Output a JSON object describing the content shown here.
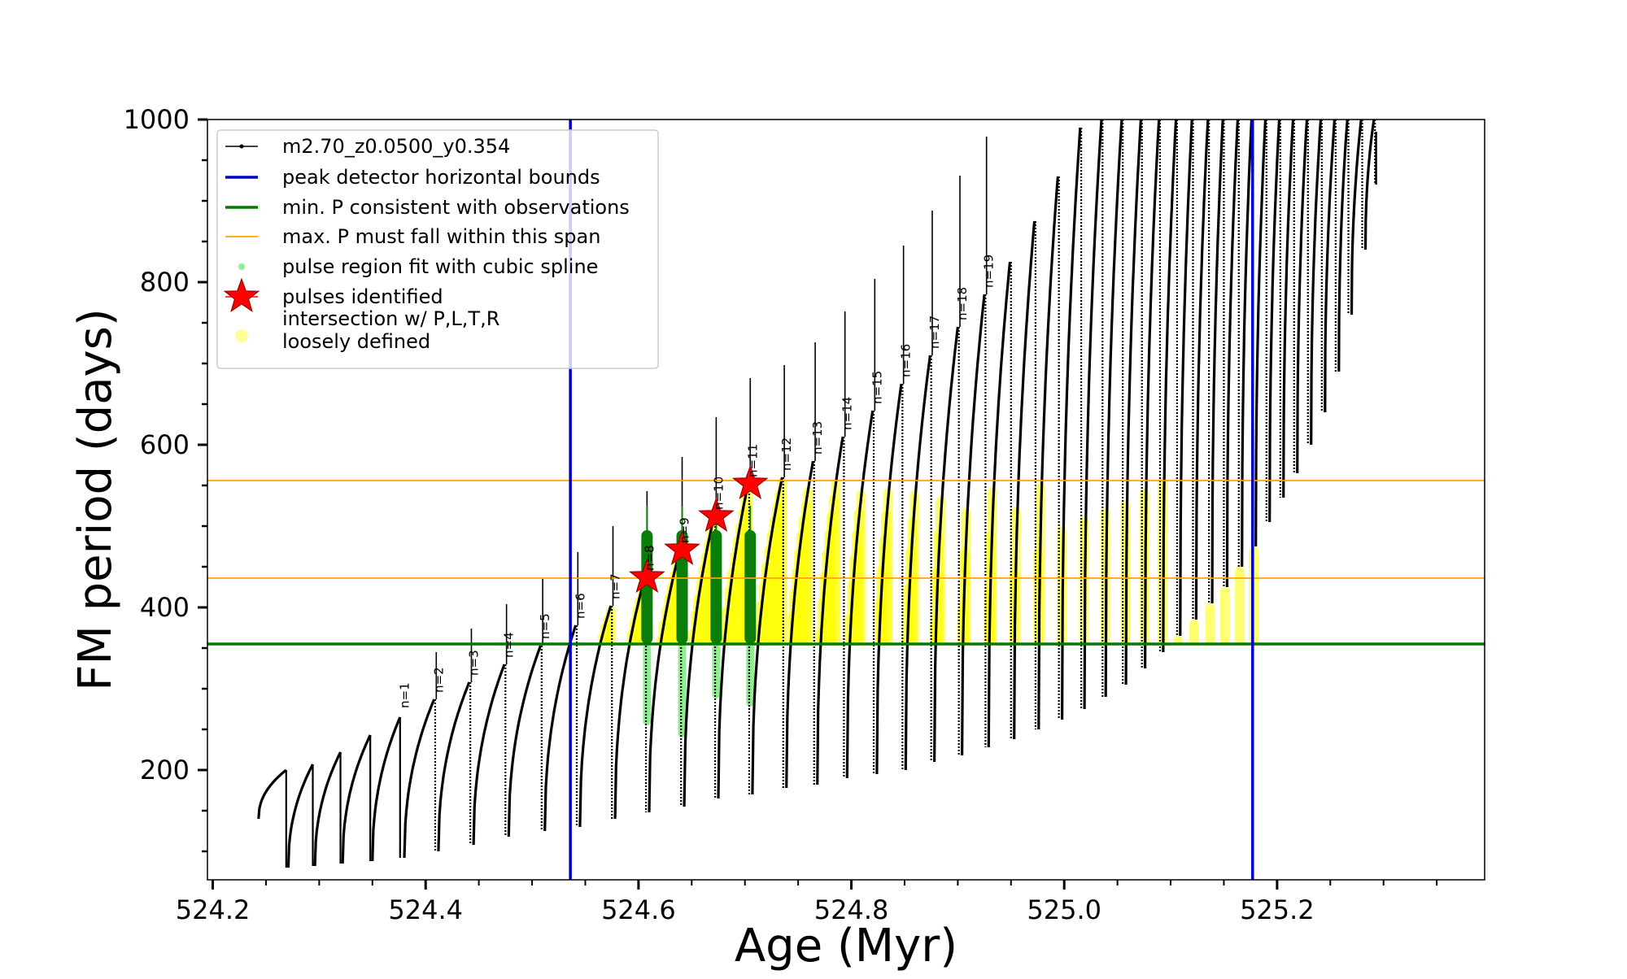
{
  "chart_data": {
    "type": "line",
    "title": "",
    "xlabel": "Age (Myr)",
    "ylabel": "FM period (days)",
    "xlim": [
      524.195,
      525.395
    ],
    "ylim": [
      65,
      1000
    ],
    "x_ticks": [
      524.2,
      524.4,
      524.6,
      524.8,
      525.0,
      525.2
    ],
    "x_tick_labels": [
      "524.2",
      "524.4",
      "524.6",
      "524.8",
      "525.0",
      "525.2"
    ],
    "y_ticks": [
      200,
      400,
      600,
      800,
      1000
    ],
    "y_tick_labels": [
      "200",
      "400",
      "600",
      "800",
      "1000"
    ],
    "grid": false,
    "legend_position": "top-left",
    "legend": [
      {
        "label": "m2.70_z0.0500_y0.354",
        "kind": "line-marker",
        "color": "#000000"
      },
      {
        "label": "peak detector horizontal bounds",
        "kind": "line",
        "color": "#0000cc"
      },
      {
        "label": "min. P consistent with observations",
        "kind": "line",
        "color": "#007a00"
      },
      {
        "label": "max. P must fall within this span",
        "kind": "thin-line",
        "color": "#ffa500"
      },
      {
        "label": "pulse region fit with cubic spline",
        "kind": "dot",
        "color": "#90ee90"
      },
      {
        "label": "pulses identified",
        "kind": "star",
        "color": "#ff0000"
      },
      {
        "label": "intersection w/ P,L,T,R\nloosely defined",
        "kind": "dot",
        "color": "#ffff99"
      }
    ],
    "vertical_lines": {
      "color": "#0000cc",
      "x": [
        524.536,
        525.177
      ]
    },
    "min_period_line": {
      "color": "#007a00",
      "y": 355
    },
    "max_period_span": {
      "color": "#ffa500",
      "y": [
        436,
        556
      ]
    },
    "pulses": [
      {
        "label": "n=1",
        "age": 524.378,
        "p_start": 92,
        "p_peak": 268
      },
      {
        "label": "n=2",
        "age": 524.41,
        "p_start": 100,
        "p_peak": 287
      },
      {
        "label": "n=3",
        "age": 524.443,
        "p_start": 108,
        "p_peak": 308
      },
      {
        "label": "n=4",
        "age": 524.476,
        "p_start": 118,
        "p_peak": 330
      },
      {
        "label": "n=5",
        "age": 524.51,
        "p_start": 125,
        "p_peak": 353
      },
      {
        "label": "n=6",
        "age": 524.543,
        "p_start": 130,
        "p_peak": 378
      },
      {
        "label": "n=7",
        "age": 524.576,
        "p_start": 140,
        "p_peak": 402
      },
      {
        "label": "n=8",
        "age": 524.608,
        "p_start": 148,
        "p_peak": 437
      },
      {
        "label": "n=9",
        "age": 524.641,
        "p_start": 155,
        "p_peak": 471
      },
      {
        "label": "n=10",
        "age": 524.673,
        "p_start": 165,
        "p_peak": 512
      },
      {
        "label": "n=11",
        "age": 524.705,
        "p_start": 170,
        "p_peak": 552
      },
      {
        "label": "n=12",
        "age": 524.737,
        "p_start": 178,
        "p_peak": 560
      },
      {
        "label": "n=13",
        "age": 524.766,
        "p_start": 182,
        "p_peak": 580
      },
      {
        "label": "n=14",
        "age": 524.794,
        "p_start": 190,
        "p_peak": 610
      },
      {
        "label": "n=15",
        "age": 524.822,
        "p_start": 195,
        "p_peak": 642
      },
      {
        "label": "n=16",
        "age": 524.849,
        "p_start": 200,
        "p_peak": 675
      },
      {
        "label": "n=17",
        "age": 524.876,
        "p_start": 210,
        "p_peak": 710
      },
      {
        "label": "n=18",
        "age": 524.902,
        "p_start": 218,
        "p_peak": 745
      },
      {
        "label": "n=19",
        "age": 524.927,
        "p_start": 228,
        "p_peak": 785
      },
      {
        "label": "",
        "age": 524.951,
        "p_start": 238,
        "p_peak": 825
      },
      {
        "label": "",
        "age": 524.974,
        "p_start": 250,
        "p_peak": 875
      },
      {
        "label": "",
        "age": 524.996,
        "p_start": 262,
        "p_peak": 930
      },
      {
        "label": "",
        "age": 525.017,
        "p_start": 275,
        "p_peak": 990
      },
      {
        "label": "",
        "age": 525.037,
        "p_start": 290,
        "p_peak": 1000
      },
      {
        "label": "",
        "age": 525.056,
        "p_start": 305,
        "p_peak": 1000
      },
      {
        "label": "",
        "age": 525.074,
        "p_start": 325,
        "p_peak": 1000
      },
      {
        "label": "",
        "age": 525.091,
        "p_start": 345,
        "p_peak": 1000
      },
      {
        "label": "",
        "age": 525.107,
        "p_start": 365,
        "p_peak": 1000
      },
      {
        "label": "",
        "age": 525.122,
        "p_start": 385,
        "p_peak": 1000
      },
      {
        "label": "",
        "age": 525.137,
        "p_start": 405,
        "p_peak": 1000
      },
      {
        "label": "",
        "age": 525.151,
        "p_start": 425,
        "p_peak": 1000
      },
      {
        "label": "",
        "age": 525.165,
        "p_start": 450,
        "p_peak": 1000
      },
      {
        "label": "",
        "age": 525.178,
        "p_start": 475,
        "p_peak": 1000
      },
      {
        "label": "",
        "age": 525.191,
        "p_start": 505,
        "p_peak": 1000
      },
      {
        "label": "",
        "age": 525.204,
        "p_start": 535,
        "p_peak": 1000
      },
      {
        "label": "",
        "age": 525.217,
        "p_start": 565,
        "p_peak": 1000
      },
      {
        "label": "",
        "age": 525.23,
        "p_start": 600,
        "p_peak": 1000
      },
      {
        "label": "",
        "age": 525.243,
        "p_start": 640,
        "p_peak": 1000
      },
      {
        "label": "",
        "age": 525.256,
        "p_start": 690,
        "p_peak": 1000
      },
      {
        "label": "",
        "age": 525.268,
        "p_start": 760,
        "p_peak": 1000
      },
      {
        "label": "",
        "age": 525.281,
        "p_start": 840,
        "p_peak": 1000
      },
      {
        "label": "",
        "age": 525.293,
        "p_start": 920,
        "p_peak": 1000
      }
    ],
    "pre_pulse_cycles": [
      {
        "start": 524.243,
        "start_p": 75,
        "peak": 200
      },
      {
        "start": 524.271,
        "start_p": 80,
        "peak": 207
      },
      {
        "start": 524.296,
        "start_p": 82,
        "peak": 222
      },
      {
        "start": 524.322,
        "start_p": 85,
        "peak": 243
      },
      {
        "start": 524.35,
        "start_p": 88,
        "peak": 265
      }
    ],
    "identified_pulses": [
      {
        "label": "n=8",
        "age": 524.608,
        "period": 437
      },
      {
        "label": "n=9",
        "age": 524.641,
        "period": 471
      },
      {
        "label": "n=10",
        "age": 524.673,
        "period": 512
      },
      {
        "label": "n=11",
        "age": 524.705,
        "period": 552
      }
    ],
    "spline_fit_regions": [
      {
        "age": 524.608,
        "p_low": 255,
        "p_high": 495
      },
      {
        "age": 524.641,
        "p_low": 240,
        "p_high": 495
      },
      {
        "age": 524.673,
        "p_low": 288,
        "p_high": 495
      },
      {
        "age": 524.705,
        "p_low": 278,
        "p_high": 495
      }
    ]
  }
}
